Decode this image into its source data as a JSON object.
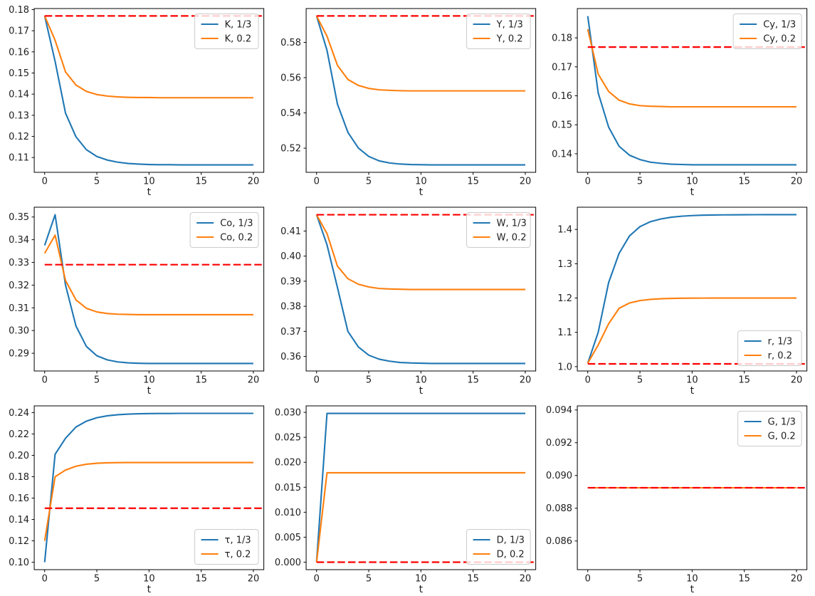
{
  "figure": {
    "background": "#ffffff"
  },
  "colors": {
    "blue": "#1f77b4",
    "orange": "#ff7f0e",
    "red": "#ff0000",
    "spine": "#000000",
    "text": "#202020",
    "legend_border": "#cccccc",
    "legend_bg": "rgba(255,255,255,0.8)"
  },
  "chart_data": {
    "type": "line",
    "grid": {
      "rows": 3,
      "cols": 3
    },
    "x": [
      0,
      1,
      2,
      3,
      4,
      5,
      6,
      7,
      8,
      9,
      10,
      11,
      12,
      13,
      14,
      15,
      16,
      17,
      18,
      19,
      20
    ],
    "xlim": [
      -1,
      21
    ],
    "xticks": [
      0,
      5,
      10,
      15,
      20
    ],
    "xtick_labels": [
      "0",
      "5",
      "10",
      "15",
      "20"
    ],
    "xlabel": "t",
    "steady_state_style": {
      "color": "red",
      "dash": "dashed"
    },
    "charts": [
      {
        "key": "K",
        "legend_loc": "upper-right",
        "ylim": [
          0.103,
          0.1805
        ],
        "ytick_values": [
          0.11,
          0.12,
          0.13,
          0.14,
          0.15,
          0.16,
          0.17,
          0.18
        ],
        "ytick_labels": [
          "0.11",
          "0.12",
          "0.13",
          "0.14",
          "0.15",
          "0.16",
          "0.17",
          "0.18"
        ],
        "steady_state": 0.177,
        "series": [
          {
            "name": "K, 1/3",
            "color": "blue",
            "values": [
              0.177,
              0.1555,
              0.131,
              0.1198,
              0.1137,
              0.1105,
              0.1088,
              0.1078,
              0.1072,
              0.1069,
              0.1067,
              0.1066,
              0.1066,
              0.1065,
              0.1065,
              0.1065,
              0.1065,
              0.1065,
              0.1065,
              0.1065,
              0.1065
            ]
          },
          {
            "name": "K, 0.2",
            "color": "orange",
            "values": [
              0.177,
              0.1655,
              0.1505,
              0.1443,
              0.1413,
              0.1398,
              0.1391,
              0.1387,
              0.1385,
              0.1384,
              0.1384,
              0.1383,
              0.1383,
              0.1383,
              0.1383,
              0.1383,
              0.1383,
              0.1383,
              0.1383,
              0.1383,
              0.1383
            ]
          }
        ]
      },
      {
        "key": "Y",
        "legend_loc": "upper-right",
        "ylim": [
          0.5063,
          0.5992
        ],
        "ytick_values": [
          0.52,
          0.54,
          0.56,
          0.58
        ],
        "ytick_labels": [
          "0.52",
          "0.54",
          "0.56",
          "0.58"
        ],
        "steady_state": 0.595,
        "series": [
          {
            "name": "Y, 1/3",
            "color": "blue",
            "values": [
              0.595,
              0.5755,
              0.545,
              0.529,
              0.5201,
              0.5153,
              0.5128,
              0.5116,
              0.511,
              0.5107,
              0.5106,
              0.5105,
              0.5105,
              0.5105,
              0.5105,
              0.5105,
              0.5105,
              0.5105,
              0.5105,
              0.5105,
              0.5105
            ]
          },
          {
            "name": "Y, 0.2",
            "color": "orange",
            "values": [
              0.595,
              0.5835,
              0.567,
              0.559,
              0.5556,
              0.5539,
              0.5531,
              0.5528,
              0.5526,
              0.5525,
              0.5525,
              0.5525,
              0.5525,
              0.5525,
              0.5525,
              0.5525,
              0.5525,
              0.5525,
              0.5525,
              0.5525,
              0.5525
            ]
          }
        ]
      },
      {
        "key": "Cy",
        "legend_loc": "upper-right",
        "ylim": [
          0.1336,
          0.1901
        ],
        "ytick_values": [
          0.14,
          0.15,
          0.16,
          0.17,
          0.18
        ],
        "ytick_labels": [
          "0.14",
          "0.15",
          "0.16",
          "0.17",
          "0.18"
        ],
        "steady_state": 0.1768,
        "series": [
          {
            "name": "Cy, 1/3",
            "color": "blue",
            "values": [
              0.1875,
              0.161,
              0.1492,
              0.1426,
              0.1395,
              0.138,
              0.1371,
              0.1367,
              0.1364,
              0.1363,
              0.1362,
              0.1362,
              0.1362,
              0.1362,
              0.1362,
              0.1362,
              0.1362,
              0.1362,
              0.1362,
              0.1362,
              0.1362
            ]
          },
          {
            "name": "Cy, 0.2",
            "color": "orange",
            "values": [
              0.183,
              0.1675,
              0.1615,
              0.1585,
              0.1572,
              0.1566,
              0.1564,
              0.1563,
              0.1562,
              0.1562,
              0.1562,
              0.1562,
              0.1562,
              0.1562,
              0.1562,
              0.1562,
              0.1562,
              0.1562,
              0.1562,
              0.1562,
              0.1562
            ]
          }
        ]
      },
      {
        "key": "Co",
        "legend_loc": "upper-right",
        "ylim": [
          0.2822,
          0.3543
        ],
        "ytick_values": [
          0.29,
          0.3,
          0.31,
          0.32,
          0.33,
          0.34,
          0.35
        ],
        "ytick_labels": [
          "0.29",
          "0.30",
          "0.31",
          "0.32",
          "0.33",
          "0.34",
          "0.35"
        ],
        "steady_state": 0.329,
        "series": [
          {
            "name": "Co, 1/3",
            "color": "blue",
            "values": [
              0.3375,
              0.351,
              0.32,
              0.302,
              0.293,
              0.2889,
              0.2871,
              0.2862,
              0.2858,
              0.2856,
              0.2855,
              0.2855,
              0.2855,
              0.2855,
              0.2855,
              0.2855,
              0.2855,
              0.2855,
              0.2855,
              0.2855,
              0.2855
            ]
          },
          {
            "name": "Co, 0.2",
            "color": "orange",
            "values": [
              0.334,
              0.342,
              0.322,
              0.3135,
              0.3098,
              0.3082,
              0.3075,
              0.3072,
              0.3071,
              0.307,
              0.307,
              0.307,
              0.307,
              0.307,
              0.307,
              0.307,
              0.307,
              0.307,
              0.307,
              0.307,
              0.307
            ]
          }
        ]
      },
      {
        "key": "W",
        "legend_loc": "upper-right",
        "ylim": [
          0.3542,
          0.4195
        ],
        "ytick_values": [
          0.36,
          0.37,
          0.38,
          0.39,
          0.4,
          0.41
        ],
        "ytick_labels": [
          "0.36",
          "0.37",
          "0.38",
          "0.39",
          "0.40",
          "0.41"
        ],
        "steady_state": 0.4165,
        "series": [
          {
            "name": "W, 1/3",
            "color": "blue",
            "values": [
              0.4165,
              0.4045,
              0.3875,
              0.37,
              0.3638,
              0.3605,
              0.3589,
              0.3581,
              0.3576,
              0.3574,
              0.3573,
              0.3572,
              0.3572,
              0.3572,
              0.3572,
              0.3572,
              0.3572,
              0.3572,
              0.3572,
              0.3572,
              0.3572
            ]
          },
          {
            "name": "W, 0.2",
            "color": "orange",
            "values": [
              0.4165,
              0.409,
              0.396,
              0.391,
              0.3888,
              0.3877,
              0.3871,
              0.3869,
              0.3868,
              0.3867,
              0.3867,
              0.3867,
              0.3867,
              0.3867,
              0.3867,
              0.3867,
              0.3867,
              0.3867,
              0.3867,
              0.3867,
              0.3867
            ]
          }
        ]
      },
      {
        "key": "r",
        "legend_loc": "lower-right",
        "ylim": [
          0.9873,
          1.4647
        ],
        "ytick_values": [
          1.0,
          1.1,
          1.2,
          1.3,
          1.4
        ],
        "ytick_labels": [
          "1.0",
          "1.1",
          "1.2",
          "1.3",
          "1.4"
        ],
        "steady_state": 1.008,
        "series": [
          {
            "name": "r, 1/3",
            "color": "blue",
            "values": [
              1.01,
              1.1,
              1.245,
              1.33,
              1.381,
              1.408,
              1.4225,
              1.4305,
              1.4355,
              1.4385,
              1.4403,
              1.4414,
              1.442,
              1.4424,
              1.4426,
              1.4428,
              1.4429,
              1.443,
              1.443,
              1.443,
              1.443
            ]
          },
          {
            "name": "r, 0.2",
            "color": "orange",
            "values": [
              1.01,
              1.063,
              1.125,
              1.17,
              1.1855,
              1.1925,
              1.196,
              1.1978,
              1.1988,
              1.1993,
              1.1996,
              1.1998,
              1.1999,
              1.2,
              1.2,
              1.2,
              1.2,
              1.2,
              1.2,
              1.2,
              1.2
            ]
          }
        ]
      },
      {
        "key": "tau",
        "legend_loc": "lower-right",
        "ylim": [
          0.093,
          0.2463
        ],
        "ytick_values": [
          0.1,
          0.12,
          0.14,
          0.16,
          0.18,
          0.2,
          0.22,
          0.24
        ],
        "ytick_labels": [
          "0.10",
          "0.12",
          "0.14",
          "0.16",
          "0.18",
          "0.20",
          "0.22",
          "0.24"
        ],
        "steady_state": 0.1505,
        "series": [
          {
            "name": "τ, 1/3",
            "color": "blue",
            "values": [
              0.1,
              0.201,
              0.216,
              0.2265,
              0.232,
              0.2352,
              0.237,
              0.238,
              0.2386,
              0.2389,
              0.2391,
              0.2392,
              0.2392,
              0.2393,
              0.2393,
              0.2393,
              0.2393,
              0.2393,
              0.2393,
              0.2393,
              0.2393
            ]
          },
          {
            "name": "τ, 0.2",
            "color": "orange",
            "values": [
              0.12,
              0.18,
              0.1862,
              0.1898,
              0.1917,
              0.1926,
              0.193,
              0.1932,
              0.1933,
              0.1933,
              0.1933,
              0.1933,
              0.1933,
              0.1933,
              0.1933,
              0.1933,
              0.1933,
              0.1933,
              0.1933,
              0.1933,
              0.1933
            ]
          }
        ]
      },
      {
        "key": "D",
        "legend_loc": "lower-right",
        "ylim": [
          -0.0015,
          0.0313
        ],
        "ytick_values": [
          0.0,
          0.005,
          0.01,
          0.015,
          0.02,
          0.025,
          0.03
        ],
        "ytick_labels": [
          "0.000",
          "0.005",
          "0.010",
          "0.015",
          "0.020",
          "0.025",
          "0.030"
        ],
        "steady_state": 0.0,
        "series": [
          {
            "name": "D, 1/3",
            "color": "blue",
            "values": [
              0.0,
              0.0298,
              0.0298,
              0.0298,
              0.0298,
              0.0298,
              0.0298,
              0.0298,
              0.0298,
              0.0298,
              0.0298,
              0.0298,
              0.0298,
              0.0298,
              0.0298,
              0.0298,
              0.0298,
              0.0298,
              0.0298,
              0.0298,
              0.0298
            ]
          },
          {
            "name": "D, 0.2",
            "color": "orange",
            "values": [
              0.0,
              0.0179,
              0.0179,
              0.0179,
              0.0179,
              0.0179,
              0.0179,
              0.0179,
              0.0179,
              0.0179,
              0.0179,
              0.0179,
              0.0179,
              0.0179,
              0.0179,
              0.0179,
              0.0179,
              0.0179,
              0.0179,
              0.0179,
              0.0179
            ]
          }
        ]
      },
      {
        "key": "G",
        "legend_loc": "upper-right",
        "ylim": [
          0.08425,
          0.09425
        ],
        "ytick_values": [
          0.086,
          0.088,
          0.09,
          0.092,
          0.094
        ],
        "ytick_labels": [
          "0.086",
          "0.088",
          "0.090",
          "0.092",
          "0.094"
        ],
        "steady_state": 0.08925,
        "series": [
          {
            "name": "G, 1/3",
            "color": "blue",
            "values": [
              0.08925,
              0.08925,
              0.08925,
              0.08925,
              0.08925,
              0.08925,
              0.08925,
              0.08925,
              0.08925,
              0.08925,
              0.08925,
              0.08925,
              0.08925,
              0.08925,
              0.08925,
              0.08925,
              0.08925,
              0.08925,
              0.08925,
              0.08925,
              0.08925
            ]
          },
          {
            "name": "G, 0.2",
            "color": "orange",
            "values": [
              0.08925,
              0.08925,
              0.08925,
              0.08925,
              0.08925,
              0.08925,
              0.08925,
              0.08925,
              0.08925,
              0.08925,
              0.08925,
              0.08925,
              0.08925,
              0.08925,
              0.08925,
              0.08925,
              0.08925,
              0.08925,
              0.08925,
              0.08925,
              0.08925
            ]
          }
        ]
      }
    ]
  }
}
